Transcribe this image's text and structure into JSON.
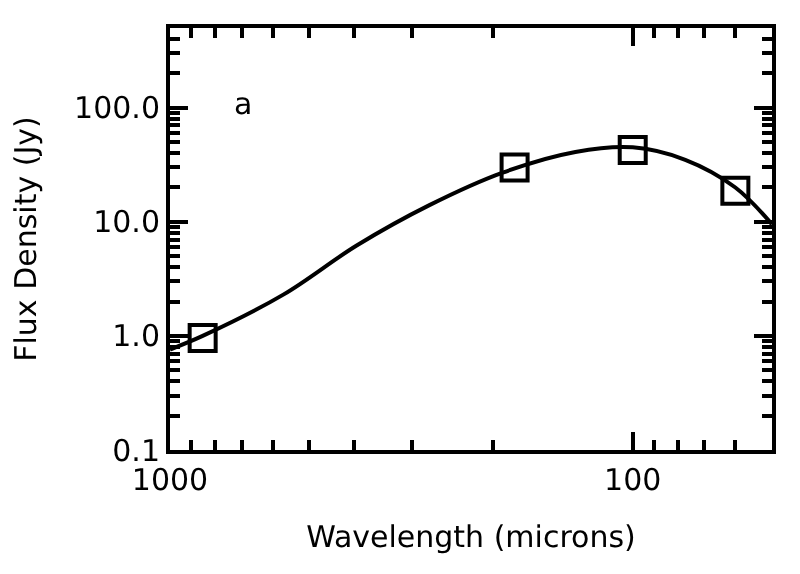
{
  "chart_data": {
    "type": "line",
    "xlabel": "Wavelength (microns)",
    "ylabel": "Flux Density (Jy)",
    "log": "xy",
    "grid": false,
    "xlim": [
      1000,
      50
    ],
    "xticks": [
      1000,
      100
    ],
    "ylim": [
      0.1,
      500
    ],
    "yticks": [
      {
        "value": 0.1,
        "label": "0.1"
      },
      {
        "value": 1,
        "label": "1.0"
      },
      {
        "value": 10,
        "label": "10.0"
      },
      {
        "value": 100,
        "label": "100.0"
      }
    ],
    "annotations": [
      "a"
    ],
    "series": [
      {
        "color": "#000000",
        "marker": "none",
        "line_style": "solid",
        "x": [
          1000,
          850,
          569,
          395,
          275,
          191,
          133,
          100,
          77,
          60,
          50
        ],
        "values": [
          0.76,
          1.0,
          2.3,
          6.2,
          14,
          27,
          41,
          45,
          35,
          20,
          9.5
        ]
      },
      {
        "type": "scatter",
        "color": "#000000",
        "marker": "square",
        "x": [
          850,
          180,
          100,
          60
        ],
        "values": [
          0.96,
          30,
          42.6,
          18.7
        ]
      }
    ]
  }
}
